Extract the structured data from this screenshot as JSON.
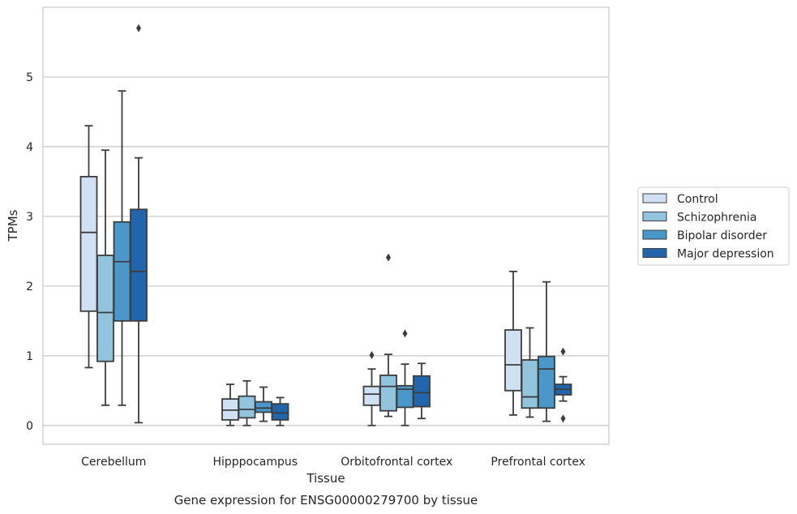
{
  "chart_data": {
    "type": "box",
    "caption": "Gene expression for ENSG00000279700 by tissue",
    "xlabel": "Tissue",
    "ylabel": "TPMs",
    "ylim": [
      -0.27,
      6.0
    ],
    "yticks": [
      "0",
      "1",
      "2",
      "3",
      "4",
      "5"
    ],
    "grid": "horizontal",
    "legend_position": "right",
    "categories": [
      "Cerebellum",
      "Hipppocampus",
      "Orbitofrontal cortex",
      "Prefrontal cortex"
    ],
    "series": [
      {
        "name": "Control",
        "color": "#cfe1f2",
        "boxes": [
          {
            "whislo": 0.83,
            "q1": 1.64,
            "med": 2.77,
            "q3": 3.57,
            "whishi": 4.3,
            "fliers": []
          },
          {
            "whislo": 0.0,
            "q1": 0.08,
            "med": 0.22,
            "q3": 0.38,
            "whishi": 0.59,
            "fliers": []
          },
          {
            "whislo": 0.0,
            "q1": 0.29,
            "med": 0.45,
            "q3": 0.56,
            "whishi": 0.81,
            "fliers": [
              1.01
            ]
          },
          {
            "whislo": 0.15,
            "q1": 0.5,
            "med": 0.87,
            "q3": 1.37,
            "whishi": 2.21,
            "fliers": []
          }
        ]
      },
      {
        "name": "Schizophrenia",
        "color": "#93c4de",
        "boxes": [
          {
            "whislo": 0.29,
            "q1": 0.92,
            "med": 1.62,
            "q3": 2.44,
            "whishi": 3.95,
            "fliers": []
          },
          {
            "whislo": 0.0,
            "q1": 0.11,
            "med": 0.23,
            "q3": 0.42,
            "whishi": 0.64,
            "fliers": []
          },
          {
            "whislo": 0.13,
            "q1": 0.21,
            "med": 0.56,
            "q3": 0.72,
            "whishi": 1.02,
            "fliers": [
              2.41
            ]
          },
          {
            "whislo": 0.12,
            "q1": 0.25,
            "med": 0.41,
            "q3": 0.94,
            "whishi": 1.4,
            "fliers": []
          }
        ]
      },
      {
        "name": "Bipolar disorder",
        "color": "#4a98c9",
        "boxes": [
          {
            "whislo": 0.29,
            "q1": 1.5,
            "med": 2.35,
            "q3": 2.92,
            "whishi": 4.8,
            "fliers": []
          },
          {
            "whislo": 0.06,
            "q1": 0.19,
            "med": 0.25,
            "q3": 0.34,
            "whishi": 0.55,
            "fliers": []
          },
          {
            "whislo": 0.0,
            "q1": 0.26,
            "med": 0.52,
            "q3": 0.57,
            "whishi": 0.88,
            "fliers": [
              1.32
            ]
          },
          {
            "whislo": 0.06,
            "q1": 0.25,
            "med": 0.81,
            "q3": 0.99,
            "whishi": 2.06,
            "fliers": []
          }
        ]
      },
      {
        "name": "Major depression",
        "color": "#2166ac",
        "boxes": [
          {
            "whislo": 0.04,
            "q1": 1.5,
            "med": 2.21,
            "q3": 3.1,
            "whishi": 3.84,
            "fliers": [
              5.7
            ]
          },
          {
            "whislo": 0.0,
            "q1": 0.08,
            "med": 0.18,
            "q3": 0.31,
            "whishi": 0.4,
            "fliers": []
          },
          {
            "whislo": 0.1,
            "q1": 0.27,
            "med": 0.47,
            "q3": 0.71,
            "whishi": 0.89,
            "fliers": []
          },
          {
            "whislo": 0.35,
            "q1": 0.44,
            "med": 0.52,
            "q3": 0.59,
            "whishi": 0.7,
            "fliers": [
              1.06,
              0.1
            ]
          }
        ]
      }
    ]
  }
}
